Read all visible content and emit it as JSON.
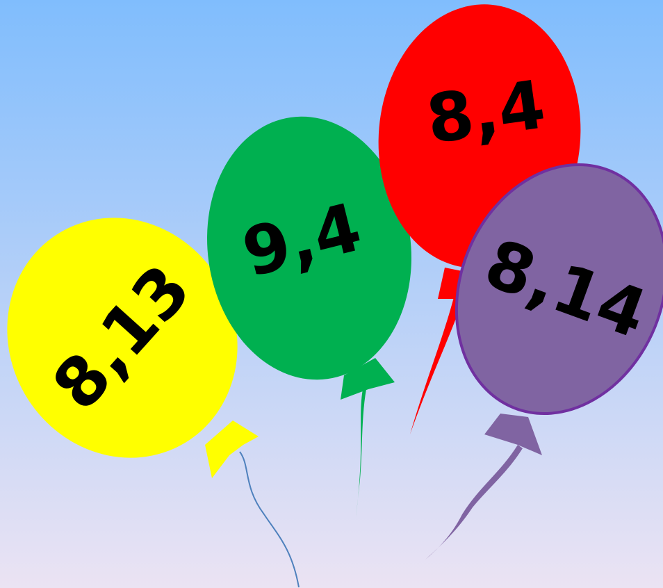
{
  "balloons": [
    {
      "label": "8,13"
    },
    {
      "label": "9,4"
    },
    {
      "label": "8,4"
    },
    {
      "label": "8,14"
    }
  ]
}
